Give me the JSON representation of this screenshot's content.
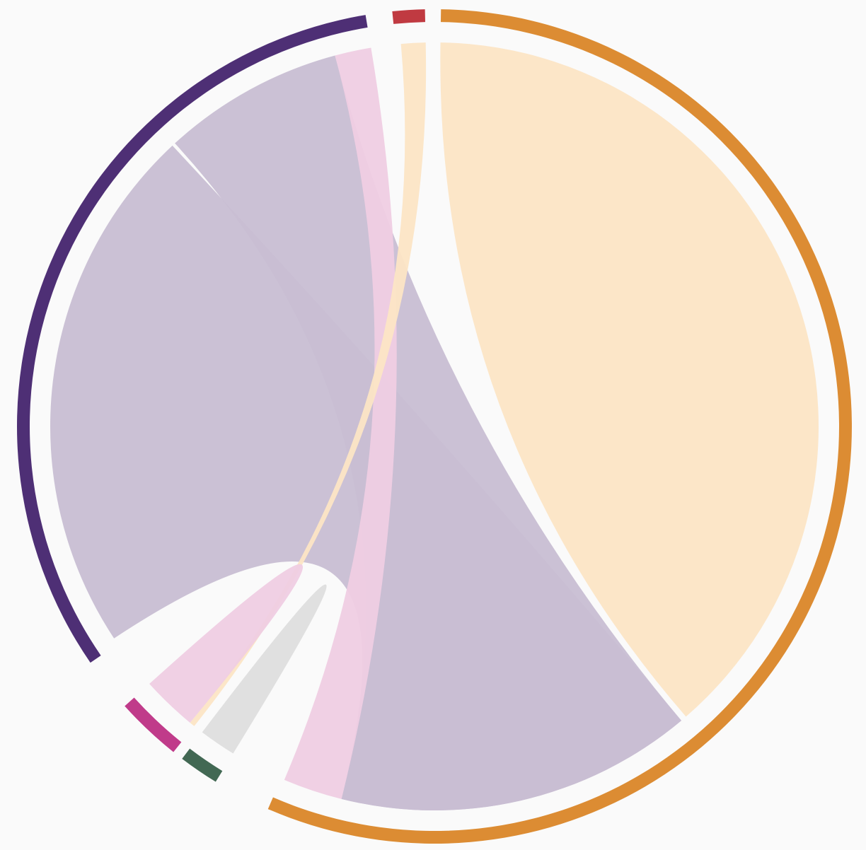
{
  "diagram": {
    "type": "chord",
    "groups": [
      {
        "id": "orange",
        "color": "#dc8c33",
        "ribbon_color": "#fce5c5",
        "start_deg": 0.9,
        "end_deg": 203.5
      },
      {
        "id": "red",
        "color": "#c03a41",
        "ribbon_color": "#f3c6c8",
        "start_deg": 354.2,
        "end_deg": 358.7
      },
      {
        "id": "purple",
        "color": "#4e2f75",
        "ribbon_color": "#c8bed3",
        "start_deg": 235.5,
        "end_deg": 350.5
      },
      {
        "id": "magenta",
        "color": "#c03b8a",
        "ribbon_color": "#efcee3",
        "start_deg": 218.7,
        "end_deg": 227.9
      },
      {
        "id": "green",
        "color": "#426853",
        "ribbon_color": "#dedede",
        "start_deg": 211.6,
        "end_deg": 217.2
      }
    ],
    "ribbons": [
      {
        "from": "orange",
        "a0": 0.9,
        "a1": 139.1,
        "b0": 0.9,
        "b1": 139.1,
        "color_from": "orange"
      },
      {
        "from": "purple",
        "a0": 236.5,
        "a1": 317.0,
        "b0": 140.0,
        "b1": 194.0,
        "color_from": "purple"
      },
      {
        "from": "purple",
        "a0": 317.5,
        "a1": 345.0,
        "b0": 140.0,
        "b1": 194.0,
        "color_from": "purple"
      },
      {
        "from": "purple",
        "a0": 345.0,
        "a1": 350.5,
        "b0": 194.0,
        "b1": 203.0,
        "color_from": "magenta"
      },
      {
        "from": "orange",
        "a0": 355.0,
        "a1": 358.7,
        "b0": 218.7,
        "b1": 219.5,
        "color_from": "orange"
      },
      {
        "from": "magenta",
        "a0": 219.5,
        "a1": 227.9,
        "b0": 219.5,
        "b1": 227.9,
        "color_from": "magenta"
      },
      {
        "from": "green",
        "a0": 211.6,
        "a1": 217.2,
        "b0": 211.6,
        "b1": 217.2,
        "color_from": "green"
      }
    ]
  }
}
